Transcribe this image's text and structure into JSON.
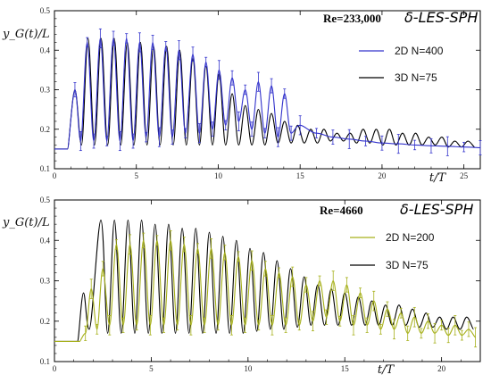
{
  "chart_data": [
    {
      "type": "line",
      "title": "",
      "xlabel": "t/T",
      "ylabel": "y_G(t)/L",
      "xlim": [
        0,
        26
      ],
      "ylim": [
        0.1,
        0.5
      ],
      "xticks": [
        0,
        5,
        10,
        15,
        20,
        25
      ],
      "yticks": [
        0.1,
        0.2,
        0.3,
        0.4,
        0.5
      ],
      "annotation_re": "Re=233,000",
      "annotation_method": "δ-LES-SPH",
      "legend_position": "top-right",
      "grid": false,
      "series": [
        {
          "name": "2D N=400",
          "color": "#3333cc",
          "error_bars": true,
          "start_x": 0.8,
          "rise_end": 1.3,
          "base": 0.15,
          "period": 0.805,
          "decay_start": 15.3,
          "decay_end": 16.5,
          "peaks": [
            [
              1.25,
              0.3
            ],
            [
              2.0,
              0.42
            ],
            [
              2.8,
              0.43
            ],
            [
              3.6,
              0.43
            ],
            [
              4.4,
              0.43
            ],
            [
              5.2,
              0.42
            ],
            [
              6.0,
              0.42
            ],
            [
              6.8,
              0.41
            ],
            [
              7.6,
              0.4
            ],
            [
              8.45,
              0.39
            ],
            [
              9.25,
              0.37
            ],
            [
              10.05,
              0.35
            ],
            [
              10.85,
              0.33
            ],
            [
              11.65,
              0.3
            ],
            [
              12.45,
              0.32
            ],
            [
              13.25,
              0.31
            ],
            [
              14.05,
              0.29
            ]
          ],
          "troughs": [
            [
              1.6,
              0.17
            ],
            [
              2.4,
              0.17
            ],
            [
              3.2,
              0.17
            ],
            [
              4.0,
              0.17
            ],
            [
              4.8,
              0.17
            ],
            [
              5.6,
              0.18
            ],
            [
              6.4,
              0.18
            ],
            [
              7.2,
              0.18
            ],
            [
              8.0,
              0.19
            ],
            [
              8.85,
              0.19
            ],
            [
              9.65,
              0.2
            ],
            [
              10.45,
              0.21
            ],
            [
              11.25,
              0.22
            ],
            [
              12.05,
              0.2
            ],
            [
              12.85,
              0.19
            ],
            [
              13.65,
              0.18
            ],
            [
              14.45,
              0.19
            ]
          ],
          "tail": [
            [
              15.0,
              0.21
            ],
            [
              16.0,
              0.19
            ],
            [
              17.0,
              0.18
            ],
            [
              18.0,
              0.175
            ],
            [
              19.0,
              0.17
            ],
            [
              20.0,
              0.165
            ],
            [
              21.0,
              0.163
            ],
            [
              22.0,
              0.16
            ],
            [
              23.0,
              0.158
            ],
            [
              24.0,
              0.157
            ],
            [
              25.0,
              0.155
            ],
            [
              26.0,
              0.153
            ]
          ]
        },
        {
          "name": "3D N=75",
          "color": "#000000",
          "error_bars": false,
          "start_x": 0.8,
          "rise_end": 1.3,
          "base": 0.15,
          "period": 0.805,
          "peaks": [
            [
              1.25,
              0.3
            ],
            [
              2.05,
              0.43
            ],
            [
              2.85,
              0.43
            ],
            [
              3.65,
              0.43
            ],
            [
              4.45,
              0.42
            ],
            [
              5.25,
              0.42
            ],
            [
              6.05,
              0.41
            ],
            [
              6.85,
              0.41
            ],
            [
              7.65,
              0.4
            ],
            [
              8.45,
              0.38
            ],
            [
              9.25,
              0.36
            ],
            [
              10.05,
              0.34
            ],
            [
              10.85,
              0.29
            ],
            [
              11.65,
              0.26
            ],
            [
              12.45,
              0.25
            ],
            [
              13.25,
              0.24
            ],
            [
              14.05,
              0.22
            ],
            [
              14.85,
              0.21
            ],
            [
              15.65,
              0.2
            ],
            [
              16.45,
              0.2
            ],
            [
              17.25,
              0.19
            ],
            [
              18.05,
              0.19
            ],
            [
              18.85,
              0.2
            ],
            [
              19.65,
              0.2
            ],
            [
              20.45,
              0.2
            ],
            [
              21.25,
              0.19
            ],
            [
              22.05,
              0.19
            ],
            [
              22.85,
              0.18
            ],
            [
              23.65,
              0.18
            ],
            [
              24.45,
              0.17
            ],
            [
              25.25,
              0.17
            ]
          ],
          "troughs": [
            [
              1.65,
              0.16
            ],
            [
              2.45,
              0.16
            ],
            [
              3.25,
              0.16
            ],
            [
              4.05,
              0.16
            ],
            [
              4.85,
              0.16
            ],
            [
              5.65,
              0.16
            ],
            [
              6.45,
              0.16
            ],
            [
              7.25,
              0.16
            ],
            [
              8.05,
              0.16
            ],
            [
              8.85,
              0.16
            ],
            [
              9.65,
              0.16
            ],
            [
              10.45,
              0.16
            ],
            [
              11.25,
              0.16
            ],
            [
              12.05,
              0.16
            ],
            [
              12.85,
              0.16
            ],
            [
              13.65,
              0.165
            ],
            [
              14.45,
              0.165
            ],
            [
              15.25,
              0.165
            ],
            [
              16.05,
              0.165
            ],
            [
              16.85,
              0.17
            ],
            [
              17.65,
              0.17
            ],
            [
              18.45,
              0.165
            ],
            [
              19.25,
              0.165
            ],
            [
              20.05,
              0.16
            ],
            [
              20.85,
              0.16
            ],
            [
              21.65,
              0.16
            ],
            [
              22.45,
              0.16
            ],
            [
              23.25,
              0.16
            ],
            [
              24.05,
              0.155
            ],
            [
              24.85,
              0.155
            ],
            [
              25.65,
              0.155
            ]
          ]
        }
      ]
    },
    {
      "type": "line",
      "title": "",
      "xlabel": "t/T",
      "ylabel": "y_G(t)/L",
      "xlim": [
        0,
        22
      ],
      "ylim": [
        0.1,
        0.5
      ],
      "xticks": [
        0,
        5,
        10,
        15,
        20
      ],
      "yticks": [
        0.1,
        0.2,
        0.3,
        0.4,
        0.5
      ],
      "annotation_re": "Re=4660",
      "annotation_method": "δ-LES-SPH",
      "legend_position": "top-right",
      "grid": false,
      "series": [
        {
          "name": "2D N=200",
          "color": "#a6b01a",
          "error_bars": true,
          "start_x": 1.3,
          "rise_end": 1.4,
          "base": 0.15,
          "period": 0.71,
          "peaks": [
            [
              1.9,
              0.28
            ],
            [
              2.5,
              0.33
            ],
            [
              3.2,
              0.39
            ],
            [
              3.9,
              0.39
            ],
            [
              4.6,
              0.4
            ],
            [
              5.3,
              0.4
            ],
            [
              6.0,
              0.4
            ],
            [
              6.7,
              0.39
            ],
            [
              7.4,
              0.38
            ],
            [
              8.1,
              0.38
            ],
            [
              8.8,
              0.37
            ],
            [
              9.5,
              0.36
            ],
            [
              10.2,
              0.35
            ],
            [
              10.9,
              0.33
            ],
            [
              11.6,
              0.32
            ],
            [
              12.3,
              0.31
            ],
            [
              13.0,
              0.29
            ],
            [
              13.7,
              0.3
            ],
            [
              14.4,
              0.3
            ],
            [
              15.1,
              0.29
            ],
            [
              15.8,
              0.27
            ],
            [
              16.5,
              0.25
            ],
            [
              17.2,
              0.23
            ],
            [
              17.9,
              0.22
            ],
            [
              18.6,
              0.21
            ],
            [
              19.3,
              0.2
            ],
            [
              20.0,
              0.19
            ],
            [
              20.7,
              0.19
            ],
            [
              21.4,
              0.18
            ]
          ],
          "troughs": [
            [
              1.6,
              0.17
            ],
            [
              2.2,
              0.18
            ],
            [
              2.85,
              0.19
            ],
            [
              3.55,
              0.19
            ],
            [
              4.25,
              0.19
            ],
            [
              4.95,
              0.19
            ],
            [
              5.65,
              0.19
            ],
            [
              6.35,
              0.19
            ],
            [
              7.05,
              0.19
            ],
            [
              7.75,
              0.19
            ],
            [
              8.45,
              0.19
            ],
            [
              9.15,
              0.19
            ],
            [
              9.85,
              0.19
            ],
            [
              10.55,
              0.19
            ],
            [
              11.25,
              0.19
            ],
            [
              11.95,
              0.19
            ],
            [
              12.65,
              0.19
            ],
            [
              13.35,
              0.2
            ],
            [
              14.05,
              0.21
            ],
            [
              14.75,
              0.2
            ],
            [
              15.45,
              0.19
            ],
            [
              16.15,
              0.19
            ],
            [
              16.85,
              0.18
            ],
            [
              17.55,
              0.18
            ],
            [
              18.25,
              0.17
            ],
            [
              18.95,
              0.17
            ],
            [
              19.65,
              0.17
            ],
            [
              20.35,
              0.165
            ],
            [
              21.05,
              0.165
            ],
            [
              21.75,
              0.16
            ]
          ]
        },
        {
          "name": "3D N=75",
          "color": "#000000",
          "error_bars": false,
          "start_x": 1.2,
          "rise_end": 1.5,
          "base": 0.15,
          "period": 0.71,
          "peaks": [
            [
              1.5,
              0.27
            ],
            [
              2.4,
              0.45
            ],
            [
              3.1,
              0.45
            ],
            [
              3.8,
              0.45
            ],
            [
              4.5,
              0.45
            ],
            [
              5.2,
              0.44
            ],
            [
              5.9,
              0.44
            ],
            [
              6.6,
              0.43
            ],
            [
              7.3,
              0.43
            ],
            [
              8.0,
              0.42
            ],
            [
              8.7,
              0.41
            ],
            [
              9.4,
              0.4
            ],
            [
              10.1,
              0.38
            ],
            [
              10.8,
              0.37
            ],
            [
              11.5,
              0.35
            ],
            [
              12.2,
              0.33
            ],
            [
              12.9,
              0.31
            ],
            [
              13.6,
              0.29
            ],
            [
              14.3,
              0.28
            ],
            [
              15.0,
              0.27
            ],
            [
              15.7,
              0.26
            ],
            [
              16.4,
              0.25
            ],
            [
              17.1,
              0.24
            ],
            [
              17.8,
              0.24
            ],
            [
              18.5,
              0.23
            ],
            [
              19.2,
              0.22
            ],
            [
              19.9,
              0.21
            ],
            [
              20.6,
              0.21
            ],
            [
              21.3,
              0.21
            ]
          ],
          "troughs": [
            [
              1.8,
              0.18
            ],
            [
              2.75,
              0.17
            ],
            [
              3.45,
              0.17
            ],
            [
              4.15,
              0.17
            ],
            [
              4.85,
              0.17
            ],
            [
              5.55,
              0.17
            ],
            [
              6.25,
              0.17
            ],
            [
              6.95,
              0.17
            ],
            [
              7.65,
              0.17
            ],
            [
              8.35,
              0.17
            ],
            [
              9.05,
              0.17
            ],
            [
              9.75,
              0.17
            ],
            [
              10.45,
              0.175
            ],
            [
              11.15,
              0.18
            ],
            [
              11.85,
              0.18
            ],
            [
              12.55,
              0.185
            ],
            [
              13.25,
              0.19
            ],
            [
              13.95,
              0.19
            ],
            [
              14.65,
              0.19
            ],
            [
              15.35,
              0.19
            ],
            [
              16.05,
              0.19
            ],
            [
              16.75,
              0.19
            ],
            [
              17.45,
              0.19
            ],
            [
              18.15,
              0.19
            ],
            [
              18.85,
              0.185
            ],
            [
              19.55,
              0.185
            ],
            [
              20.25,
              0.18
            ],
            [
              20.95,
              0.18
            ],
            [
              21.65,
              0.18
            ]
          ]
        }
      ]
    }
  ]
}
